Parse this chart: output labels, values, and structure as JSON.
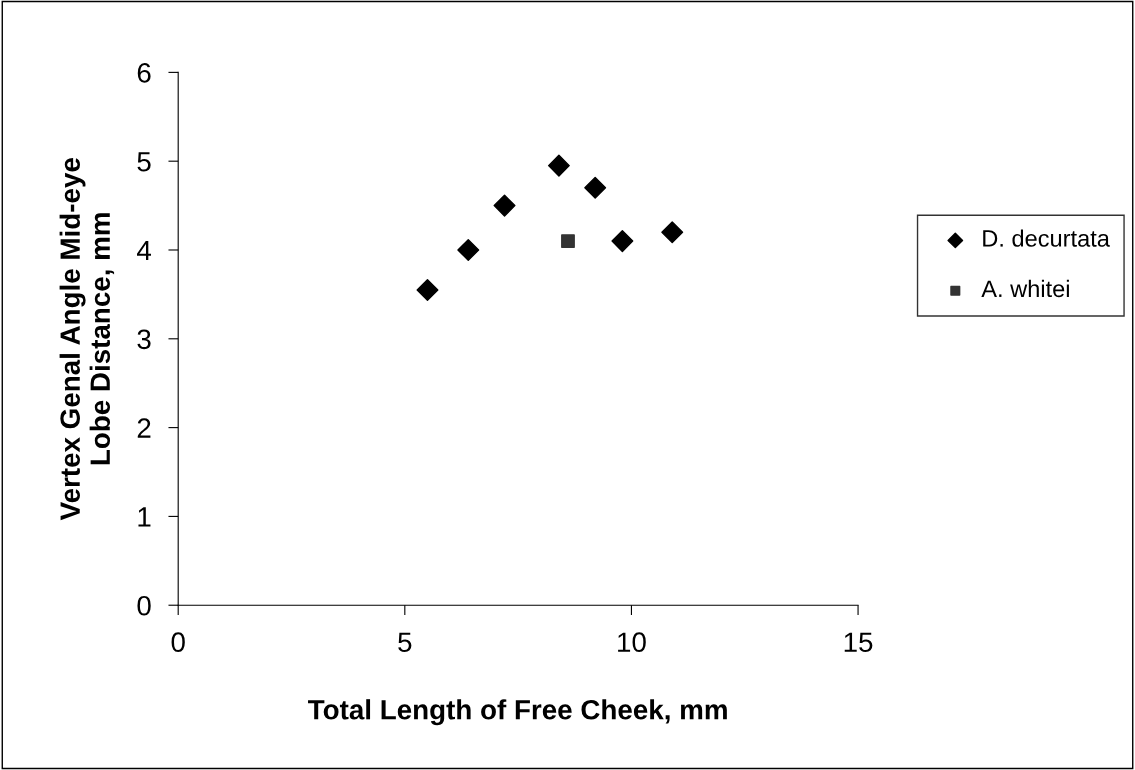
{
  "chart_data": {
    "type": "scatter",
    "xlabel": "Total Length of Free Cheek, mm",
    "ylabel": "Vertex Genal Angle Mid-eye\nLobe Distance, mm",
    "series": [
      {
        "name": "D. decurtata",
        "color": "#000000",
        "marker": "diamond",
        "x": [
          5.5,
          6.4,
          7.2,
          8.4,
          9.2,
          9.8,
          10.9
        ],
        "values": [
          3.55,
          4.0,
          4.5,
          4.95,
          4.7,
          4.1,
          4.2
        ]
      },
      {
        "name": "A. whitei",
        "color": "#333333",
        "marker": "square",
        "x": [
          8.6
        ],
        "values": [
          4.1
        ]
      }
    ],
    "xlim": [
      0,
      15
    ],
    "xticks": [
      0,
      5,
      10,
      15
    ],
    "ylim": [
      0,
      6
    ],
    "yticks": [
      0,
      1,
      2,
      3,
      4,
      5,
      6
    ],
    "grid": false,
    "legend": "right"
  }
}
